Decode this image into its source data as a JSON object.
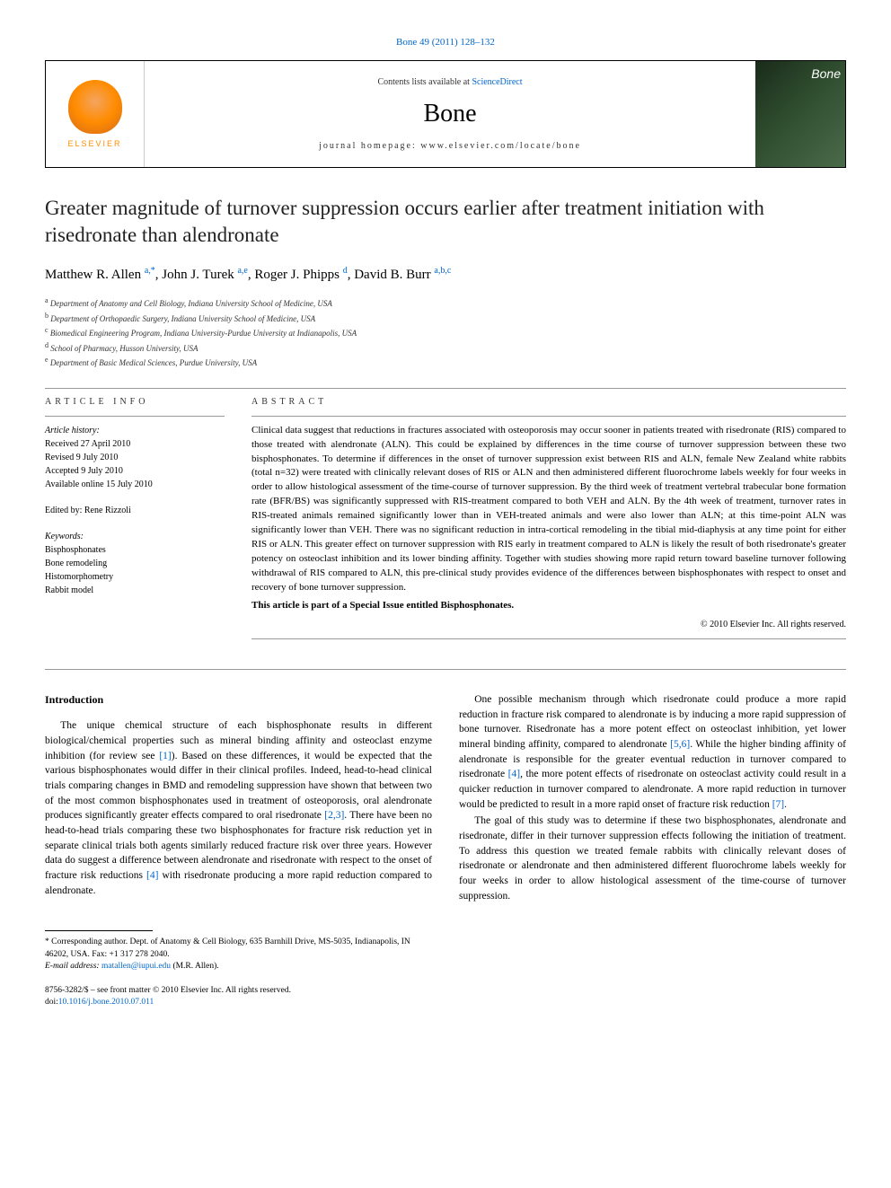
{
  "journal_ref": {
    "name": "Bone",
    "citation": "Bone 49 (2011) 128–132"
  },
  "header": {
    "contents_prefix": "Contents lists available at ",
    "contents_link": "ScienceDirect",
    "journal_title": "Bone",
    "homepage_prefix": "journal homepage: ",
    "homepage_url": "www.elsevier.com/locate/bone",
    "publisher_name": "ELSEVIER",
    "cover_label": "Bone"
  },
  "article": {
    "title": "Greater magnitude of turnover suppression occurs earlier after treatment initiation with risedronate than alendronate",
    "authors": [
      {
        "name": "Matthew R. Allen",
        "sup": "a,*"
      },
      {
        "name": "John J. Turek",
        "sup": "a,e"
      },
      {
        "name": "Roger J. Phipps",
        "sup": "d"
      },
      {
        "name": "David B. Burr",
        "sup": "a,b,c"
      }
    ],
    "affiliations": [
      {
        "sup": "a",
        "text": "Department of Anatomy and Cell Biology, Indiana University School of Medicine, USA"
      },
      {
        "sup": "b",
        "text": "Department of Orthopaedic Surgery, Indiana University School of Medicine, USA"
      },
      {
        "sup": "c",
        "text": "Biomedical Engineering Program, Indiana University-Purdue University at Indianapolis, USA"
      },
      {
        "sup": "d",
        "text": "School of Pharmacy, Husson University, USA"
      },
      {
        "sup": "e",
        "text": "Department of Basic Medical Sciences, Purdue University, USA"
      }
    ]
  },
  "article_info": {
    "header": "ARTICLE INFO",
    "history_label": "Article history:",
    "history": [
      "Received 27 April 2010",
      "Revised 9 July 2010",
      "Accepted 9 July 2010",
      "Available online 15 July 2010"
    ],
    "editor_label": "Edited by: ",
    "editor": "Rene Rizzoli",
    "keywords_label": "Keywords:",
    "keywords": [
      "Bisphosphonates",
      "Bone remodeling",
      "Histomorphometry",
      "Rabbit model"
    ]
  },
  "abstract": {
    "header": "ABSTRACT",
    "text": "Clinical data suggest that reductions in fractures associated with osteoporosis may occur sooner in patients treated with risedronate (RIS) compared to those treated with alendronate (ALN). This could be explained by differences in the time course of turnover suppression between these two bisphosphonates. To determine if differences in the onset of turnover suppression exist between RIS and ALN, female New Zealand white rabbits (total n=32) were treated with clinically relevant doses of RIS or ALN and then administered different fluorochrome labels weekly for four weeks in order to allow histological assessment of the time-course of turnover suppression. By the third week of treatment vertebral trabecular bone formation rate (BFR/BS) was significantly suppressed with RIS-treatment compared to both VEH and ALN. By the 4th week of treatment, turnover rates in RIS-treated animals remained significantly lower than in VEH-treated animals and were also lower than ALN; at this time-point ALN was significantly lower than VEH. There was no significant reduction in intra-cortical remodeling in the tibial mid-diaphysis at any time point for either RIS or ALN. This greater effect on turnover suppression with RIS early in treatment compared to ALN is likely the result of both risedronate's greater potency on osteoclast inhibition and its lower binding affinity. Together with studies showing more rapid return toward baseline turnover following withdrawal of RIS compared to ALN, this pre-clinical study provides evidence of the differences between bisphosphonates with respect to onset and recovery of bone turnover suppression.",
    "special_issue": "This article is part of a Special Issue entitled Bisphosphonates.",
    "copyright": "© 2010 Elsevier Inc. All rights reserved."
  },
  "body": {
    "intro_heading": "Introduction",
    "para1_a": "The unique chemical structure of each bisphosphonate results in different biological/chemical properties such as mineral binding affinity and osteoclast enzyme inhibition (for review see ",
    "para1_ref1": "[1]",
    "para1_b": "). Based on these differences, it would be expected that the various bisphosphonates would differ in their clinical profiles. Indeed, head-to-head clinical trials comparing changes in BMD and remodeling suppression have shown that between two of the most common bisphosphonates used in treatment of osteoporosis, oral alendronate produces significantly greater effects compared to oral risedronate ",
    "para1_ref2": "[2,3]",
    "para1_c": ". There have been no head-to-head trials comparing these two bisphosphonates for fracture risk reduction yet in separate clinical trials both agents similarly reduced fracture risk over three years. However data do suggest a difference between alendronate and risedronate with respect to the onset of fracture risk reductions ",
    "para1_ref3": "[4]",
    "para1_d": " with risedronate producing a more rapid reduction compared to alendronate.",
    "para2_a": "One possible mechanism through which risedronate could produce a more rapid reduction in fracture risk compared to alendronate is by inducing a more rapid suppression of bone turnover. Risedronate has a more potent effect on osteoclast inhibition, yet lower mineral binding affinity, compared to alendronate ",
    "para2_ref1": "[5,6]",
    "para2_b": ". While the higher binding affinity of alendronate is responsible for the greater eventual reduction in turnover compared to risedronate ",
    "para2_ref2": "[4]",
    "para2_c": ", the more potent effects of risedronate on osteoclast activity could result in a quicker reduction in turnover compared to alendronate. A more rapid reduction in turnover would be predicted to result in a more rapid onset of fracture risk reduction ",
    "para2_ref3": "[7]",
    "para2_d": ".",
    "para3": "The goal of this study was to determine if these two bisphosphonates, alendronate and risedronate, differ in their turnover suppression effects following the initiation of treatment. To address this question we treated female rabbits with clinically relevant doses of risedronate or alendronate and then administered different fluorochrome labels weekly for four weeks in order to allow histological assessment of the time-course of turnover suppression."
  },
  "footnotes": {
    "corresponding": "* Corresponding author. Dept. of Anatomy & Cell Biology, 635 Barnhill Drive, MS-5035, Indianapolis, IN 46202, USA. Fax: +1 317 278 2040.",
    "email_label": "E-mail address: ",
    "email": "matallen@iupui.edu",
    "email_name": " (M.R. Allen)."
  },
  "bottom": {
    "issn_line": "8756-3282/$ – see front matter © 2010 Elsevier Inc. All rights reserved.",
    "doi_label": "doi:",
    "doi": "10.1016/j.bone.2010.07.011"
  }
}
